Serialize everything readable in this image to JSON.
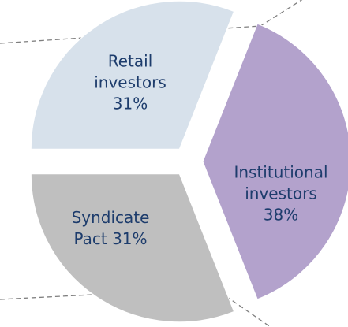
{
  "chart_data": {
    "type": "pie",
    "categories": [
      "Institutional investors",
      "Syndicate Pact",
      "Retail investors"
    ],
    "values": [
      38,
      31,
      31
    ],
    "value_labels": [
      "38%",
      "31%",
      "31%"
    ],
    "colors": [
      "#b3a2cc",
      "#bfbfbf",
      "#d7e1eb"
    ],
    "exploded": true
  }
}
